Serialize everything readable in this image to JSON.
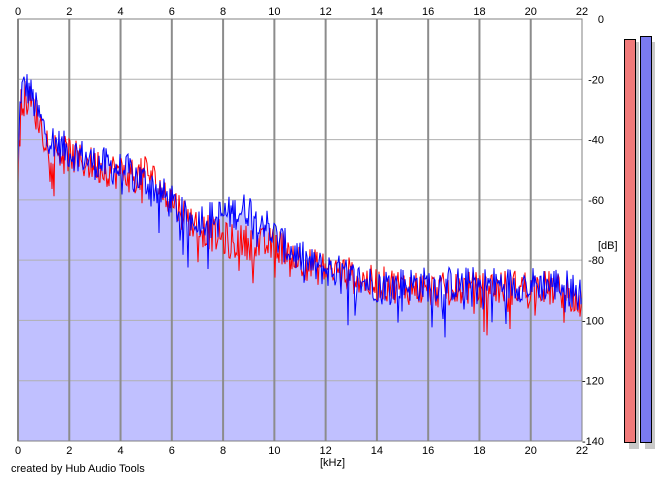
{
  "chart_data": {
    "type": "area",
    "xlabel": "[kHz]",
    "ylabel": "[dB]",
    "xlim": [
      0,
      22
    ],
    "ylim": [
      -140,
      0
    ],
    "x_ticks": [
      0,
      2,
      4,
      6,
      8,
      10,
      12,
      14,
      16,
      18,
      20,
      22
    ],
    "y_ticks": [
      0,
      -20,
      -40,
      -60,
      -80,
      -100,
      -120,
      -140
    ],
    "grid": true,
    "x_grid_heavy": [
      0,
      2,
      4,
      6,
      8,
      10,
      12,
      14,
      16,
      18,
      20
    ],
    "series": [
      {
        "color": "#ff0000",
        "x": [
          0,
          0.1,
          0.3,
          0.5,
          0.7,
          1.0,
          1.3,
          1.6,
          2.0,
          2.4,
          2.8,
          3.2,
          3.6,
          4.0,
          4.4,
          4.8,
          5.0,
          5.5,
          6.0,
          6.5,
          7.0,
          7.5,
          8.0,
          8.5,
          9.0,
          9.5,
          10.0,
          10.5,
          11.0,
          11.5,
          12.0,
          12.5,
          13.0,
          13.5,
          14.0,
          14.5,
          15.0,
          15.5,
          16.0,
          16.5,
          17.0,
          17.5,
          18.0,
          18.5,
          19.0,
          19.5,
          20.0,
          20.5,
          21.0,
          21.5,
          22.0
        ],
        "values": [
          -50,
          -27,
          -26,
          -28,
          -31,
          -38,
          -42,
          -44,
          -45,
          -47,
          -48,
          -49,
          -50,
          -51,
          -52,
          -52,
          -50,
          -56,
          -60,
          -65,
          -69,
          -71,
          -73,
          -74,
          -74,
          -75,
          -75,
          -76,
          -80,
          -82,
          -83,
          -84,
          -85,
          -87,
          -88,
          -88,
          -89,
          -89,
          -90,
          -90,
          -90,
          -89,
          -90,
          -89,
          -89,
          -89,
          -89,
          -89,
          -90,
          -91,
          -95
        ]
      },
      {
        "color": "#0000ff",
        "x": [
          0,
          0.1,
          0.3,
          0.5,
          0.7,
          1.0,
          1.3,
          1.6,
          2.0,
          2.4,
          2.8,
          3.2,
          3.6,
          4.0,
          4.4,
          4.8,
          5.0,
          5.5,
          6.0,
          6.5,
          7.0,
          7.5,
          8.0,
          8.5,
          9.0,
          9.5,
          10.0,
          10.5,
          11.0,
          11.5,
          12.0,
          12.5,
          13.0,
          13.5,
          14.0,
          14.5,
          15.0,
          15.5,
          16.0,
          16.5,
          17.0,
          17.5,
          18.0,
          18.5,
          19.0,
          19.5,
          20.0,
          20.5,
          21.0,
          21.5,
          22.0
        ],
        "values": [
          -50,
          -24,
          -22,
          -25,
          -30,
          -36,
          -40,
          -42,
          -44,
          -45,
          -47,
          -48,
          -49,
          -50,
          -51,
          -53,
          -54,
          -57,
          -61,
          -66,
          -66,
          -66,
          -65,
          -64,
          -63,
          -66,
          -72,
          -76,
          -79,
          -82,
          -83,
          -84,
          -86,
          -87,
          -88,
          -88,
          -88,
          -88,
          -88,
          -88,
          -88,
          -88,
          -88,
          -88,
          -88,
          -88,
          -88,
          -88,
          -88,
          -89,
          -92
        ]
      }
    ],
    "fill_color": "#c0c0ff",
    "meters": [
      {
        "color": "#f07a7a",
        "value": -6
      },
      {
        "color": "#7a7af0",
        "value": -5
      }
    ]
  },
  "labels": {
    "x_unit": "[kHz]",
    "y_unit": "[dB]",
    "credit": "created by Hub Audio Tools"
  }
}
